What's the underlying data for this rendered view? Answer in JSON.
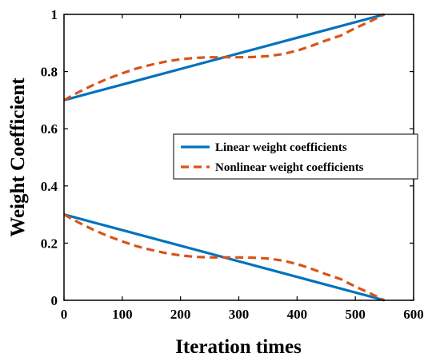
{
  "chart_data": {
    "type": "line",
    "title": "",
    "xlabel": "Iteration times",
    "ylabel": "Weight Coefficient",
    "xlim": [
      0,
      600
    ],
    "ylim": [
      0,
      1
    ],
    "xticks": [
      "0",
      "100",
      "200",
      "300",
      "400",
      "500",
      "600"
    ],
    "yticks": [
      "0",
      "0.2",
      "0.4",
      "0.6",
      "0.8",
      "1"
    ],
    "grid": false,
    "legend_position": "right-center",
    "series": [
      {
        "name": "Linear weight coefficients",
        "style": "solid",
        "color": "#0072BD",
        "x": [
          0,
          550
        ],
        "y": [
          0.7,
          1.0
        ]
      },
      {
        "name": "Nonlinear weight coefficients",
        "style": "dashed",
        "color": "#D95319",
        "x": [
          0,
          25,
          50,
          75,
          100,
          125,
          150,
          175,
          200,
          225,
          250,
          275,
          300,
          325,
          350,
          375,
          400,
          425,
          450,
          475,
          500,
          525,
          550
        ],
        "y": [
          0.7,
          0.728,
          0.753,
          0.775,
          0.794,
          0.811,
          0.824,
          0.835,
          0.843,
          0.848,
          0.85,
          0.85,
          0.85,
          0.851,
          0.854,
          0.861,
          0.873,
          0.89,
          0.909,
          0.926,
          0.952,
          0.975,
          1.0
        ]
      },
      {
        "name": "",
        "style": "solid",
        "color": "#0072BD",
        "x": [
          0,
          550
        ],
        "y": [
          0.3,
          0.0
        ]
      },
      {
        "name": "",
        "style": "dashed",
        "color": "#D95319",
        "x": [
          0,
          25,
          50,
          75,
          100,
          125,
          150,
          175,
          200,
          225,
          250,
          275,
          300,
          325,
          350,
          375,
          400,
          425,
          450,
          475,
          500,
          525,
          550
        ],
        "y": [
          0.3,
          0.272,
          0.247,
          0.225,
          0.206,
          0.189,
          0.176,
          0.165,
          0.157,
          0.152,
          0.15,
          0.15,
          0.15,
          0.149,
          0.146,
          0.139,
          0.127,
          0.11,
          0.091,
          0.074,
          0.048,
          0.025,
          0.0
        ]
      }
    ]
  }
}
